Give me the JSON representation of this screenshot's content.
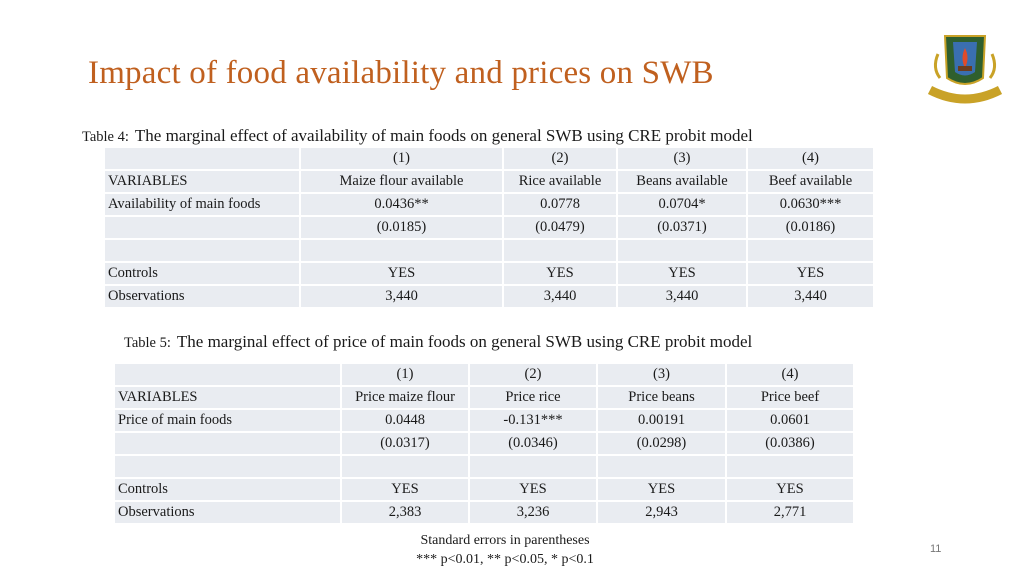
{
  "slide": {
    "title": "Impact of food availability and prices on SWB",
    "logo_text": "HEKIMA NI UHURU",
    "page_number": "11"
  },
  "table4": {
    "label": "Table 4:",
    "caption": "The marginal effect of availability of main foods on general SWB using CRE probit model",
    "rows": [
      [
        "",
        "(1)",
        "(2)",
        "(3)",
        "(4)"
      ],
      [
        "VARIABLES",
        "Maize flour available",
        "Rice available",
        "Beans available",
        "Beef available"
      ],
      [
        "Availability of main foods",
        "0.0436**",
        "0.0778",
        "0.0704*",
        "0.0630***"
      ],
      [
        "",
        "(0.0185)",
        "(0.0479)",
        "(0.0371)",
        "(0.0186)"
      ],
      [
        "",
        "",
        "",
        "",
        ""
      ],
      [
        "Controls",
        "YES",
        "YES",
        "YES",
        "YES"
      ],
      [
        "Observations",
        "3,440",
        "3,440",
        "3,440",
        "3,440"
      ]
    ]
  },
  "table5": {
    "label": "Table 5:",
    "caption": "The marginal effect of price of main foods on general SWB using CRE probit model",
    "rows": [
      [
        "",
        "(1)",
        "(2)",
        "(3)",
        "(4)"
      ],
      [
        "VARIABLES",
        "Price maize flour",
        "Price rice",
        "Price beans",
        "Price beef"
      ],
      [
        "Price of main foods",
        "0.0448",
        "-0.131***",
        "0.00191",
        "0.0601"
      ],
      [
        "",
        "(0.0317)",
        "(0.0346)",
        "(0.0298)",
        "(0.0386)"
      ],
      [
        "",
        "",
        "",
        "",
        ""
      ],
      [
        "Controls",
        "YES",
        "YES",
        "YES",
        "YES"
      ],
      [
        "Observations",
        "2,383",
        "3,236",
        "2,943",
        "2,771"
      ]
    ]
  },
  "notes": {
    "line1": "Standard errors in parentheses",
    "line2": "*** p<0.01, ** p<0.05, * p<0.1"
  }
}
